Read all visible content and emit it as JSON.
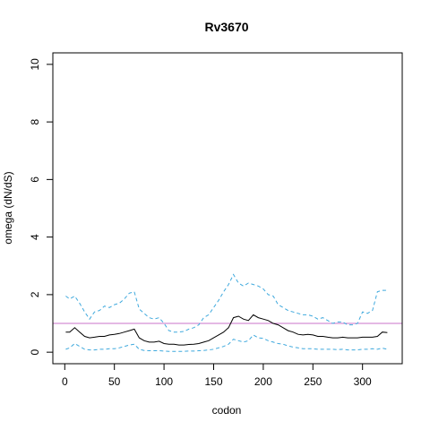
{
  "chart_data": {
    "type": "line",
    "title": "Rv3670",
    "xlabel": "codon",
    "ylabel": "omega (dN/dS)",
    "xlim": [
      -12,
      340
    ],
    "ylim": [
      -0.4,
      10.4
    ],
    "x_ticks": [
      0,
      50,
      100,
      150,
      200,
      250,
      300
    ],
    "y_ticks": [
      0,
      2,
      4,
      6,
      8,
      10
    ],
    "grid": false,
    "reference_line": {
      "y": 1,
      "color": "#c873c8"
    },
    "series": [
      {
        "role": "estimate",
        "color": "#000000",
        "dashed": false,
        "x": [
          1,
          5,
          10,
          15,
          20,
          25,
          30,
          35,
          40,
          45,
          50,
          55,
          60,
          65,
          70,
          75,
          80,
          85,
          90,
          95,
          100,
          105,
          110,
          115,
          120,
          125,
          130,
          135,
          140,
          145,
          150,
          155,
          160,
          165,
          170,
          175,
          180,
          185,
          190,
          195,
          200,
          205,
          210,
          215,
          220,
          225,
          230,
          235,
          240,
          245,
          250,
          255,
          260,
          265,
          270,
          275,
          280,
          285,
          290,
          295,
          300,
          305,
          310,
          315,
          320,
          325
        ],
        "y": [
          0.7,
          0.7,
          0.85,
          0.7,
          0.55,
          0.5,
          0.52,
          0.55,
          0.55,
          0.6,
          0.62,
          0.65,
          0.7,
          0.75,
          0.8,
          0.5,
          0.4,
          0.35,
          0.35,
          0.38,
          0.3,
          0.28,
          0.28,
          0.25,
          0.25,
          0.27,
          0.28,
          0.3,
          0.35,
          0.4,
          0.5,
          0.6,
          0.7,
          0.85,
          1.2,
          1.25,
          1.15,
          1.1,
          1.3,
          1.2,
          1.15,
          1.1,
          1.0,
          0.95,
          0.85,
          0.75,
          0.7,
          0.62,
          0.6,
          0.62,
          0.6,
          0.55,
          0.55,
          0.52,
          0.5,
          0.5,
          0.52,
          0.5,
          0.5,
          0.5,
          0.52,
          0.52,
          0.52,
          0.55,
          0.7,
          0.68
        ]
      },
      {
        "role": "upper-bound",
        "color": "#3fa9dd",
        "dashed": true,
        "x": [
          1,
          5,
          10,
          15,
          20,
          25,
          30,
          35,
          40,
          45,
          50,
          55,
          60,
          65,
          70,
          75,
          80,
          85,
          90,
          95,
          100,
          105,
          110,
          115,
          120,
          125,
          130,
          135,
          140,
          145,
          150,
          155,
          160,
          165,
          170,
          175,
          180,
          185,
          190,
          195,
          200,
          205,
          210,
          215,
          220,
          225,
          230,
          235,
          240,
          245,
          250,
          255,
          260,
          265,
          270,
          275,
          280,
          285,
          290,
          295,
          300,
          305,
          310,
          315,
          320,
          325
        ],
        "y": [
          1.95,
          1.85,
          1.95,
          1.7,
          1.4,
          1.15,
          1.4,
          1.45,
          1.6,
          1.55,
          1.65,
          1.7,
          1.85,
          2.05,
          2.1,
          1.5,
          1.35,
          1.2,
          1.15,
          1.2,
          1.0,
          0.75,
          0.7,
          0.7,
          0.72,
          0.8,
          0.85,
          0.95,
          1.2,
          1.3,
          1.55,
          1.8,
          2.1,
          2.35,
          2.7,
          2.4,
          2.3,
          2.4,
          2.35,
          2.3,
          2.2,
          2.0,
          1.95,
          1.65,
          1.55,
          1.45,
          1.4,
          1.35,
          1.3,
          1.3,
          1.25,
          1.15,
          1.2,
          1.1,
          1.0,
          1.05,
          1.05,
          0.95,
          0.95,
          1.0,
          1.4,
          1.35,
          1.45,
          2.1,
          2.15,
          2.15
        ]
      },
      {
        "role": "lower-bound",
        "color": "#3fa9dd",
        "dashed": true,
        "x": [
          1,
          5,
          10,
          15,
          20,
          25,
          30,
          35,
          40,
          45,
          50,
          55,
          60,
          65,
          70,
          75,
          80,
          85,
          90,
          95,
          100,
          105,
          110,
          115,
          120,
          125,
          130,
          135,
          140,
          145,
          150,
          155,
          160,
          165,
          170,
          175,
          180,
          185,
          190,
          195,
          200,
          205,
          210,
          215,
          220,
          225,
          230,
          235,
          240,
          245,
          250,
          255,
          260,
          265,
          270,
          275,
          280,
          285,
          290,
          295,
          300,
          305,
          310,
          315,
          320,
          325
        ],
        "y": [
          0.1,
          0.15,
          0.3,
          0.2,
          0.1,
          0.08,
          0.08,
          0.1,
          0.1,
          0.12,
          0.12,
          0.15,
          0.2,
          0.25,
          0.28,
          0.1,
          0.06,
          0.05,
          0.05,
          0.05,
          0.04,
          0.03,
          0.03,
          0.03,
          0.03,
          0.04,
          0.04,
          0.05,
          0.06,
          0.08,
          0.1,
          0.15,
          0.2,
          0.28,
          0.45,
          0.4,
          0.35,
          0.4,
          0.6,
          0.5,
          0.48,
          0.4,
          0.35,
          0.3,
          0.28,
          0.22,
          0.18,
          0.15,
          0.12,
          0.12,
          0.12,
          0.1,
          0.1,
          0.1,
          0.1,
          0.09,
          0.1,
          0.08,
          0.08,
          0.08,
          0.1,
          0.1,
          0.12,
          0.1,
          0.14,
          0.1
        ]
      }
    ]
  }
}
